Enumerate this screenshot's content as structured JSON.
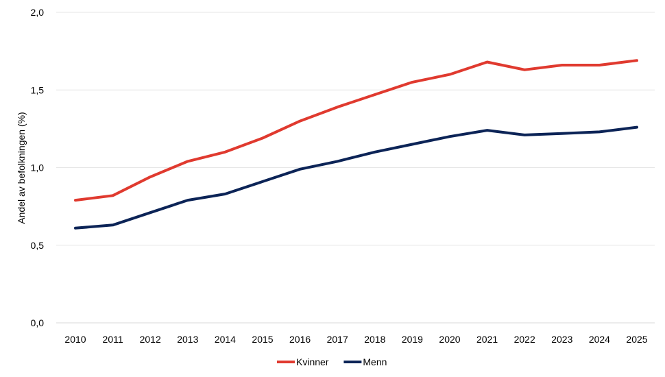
{
  "chart_data": {
    "type": "line",
    "title": "",
    "xlabel": "",
    "ylabel": "Andel av befolkningen (%)",
    "ylim": [
      0,
      2.0
    ],
    "y_ticks": [
      0.0,
      0.5,
      1.0,
      1.5,
      2.0
    ],
    "y_tick_labels": [
      "0,0",
      "0,5",
      "1,0",
      "1,5",
      "2,0"
    ],
    "categories": [
      "2010",
      "2011",
      "2012",
      "2013",
      "2014",
      "2015",
      "2016",
      "2017",
      "2018",
      "2019",
      "2020",
      "2021",
      "2022",
      "2023",
      "2024",
      "2025"
    ],
    "grid": true,
    "legend_position": "bottom",
    "series": [
      {
        "name": "Kvinner",
        "color": "#e03a2f",
        "values": [
          0.79,
          0.82,
          0.94,
          1.04,
          1.1,
          1.19,
          1.3,
          1.39,
          1.47,
          1.55,
          1.6,
          1.68,
          1.63,
          1.66,
          1.66,
          1.69
        ]
      },
      {
        "name": "Menn",
        "color": "#0c2457",
        "values": [
          0.61,
          0.63,
          0.71,
          0.79,
          0.83,
          0.91,
          0.99,
          1.04,
          1.1,
          1.15,
          1.2,
          1.24,
          1.21,
          1.22,
          1.23,
          1.26
        ]
      }
    ]
  }
}
